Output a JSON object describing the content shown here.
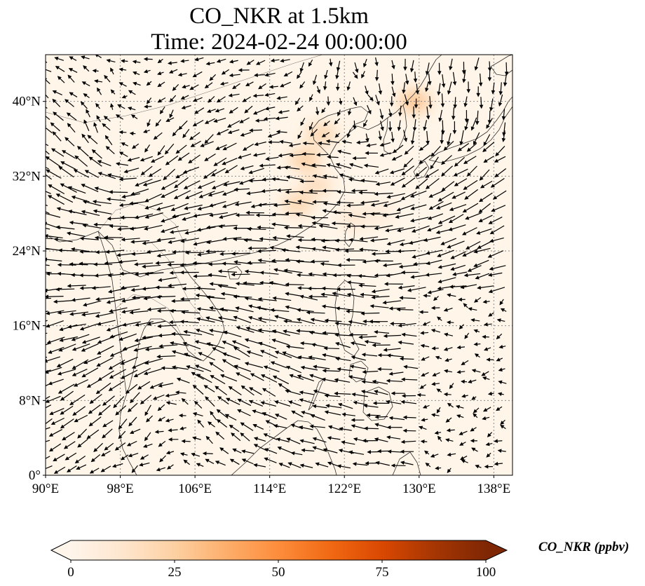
{
  "title": {
    "line1": "CO_NKR at 1.5km",
    "line2": "Time: 2024-02-24 00:00:00"
  },
  "map": {
    "extent": {
      "lon": [
        90,
        140
      ],
      "lat": [
        0,
        45
      ]
    },
    "lon_ticks": [
      {
        "value": 90,
        "label": "90°E"
      },
      {
        "value": 98,
        "label": "98°E"
      },
      {
        "value": 106,
        "label": "106°E"
      },
      {
        "value": 114,
        "label": "114°E"
      },
      {
        "value": 122,
        "label": "122°E"
      },
      {
        "value": 130,
        "label": "130°E"
      },
      {
        "value": 138,
        "label": "138°E"
      }
    ],
    "lat_ticks": [
      {
        "value": 0,
        "label": "0°"
      },
      {
        "value": 8,
        "label": "8°N"
      },
      {
        "value": 16,
        "label": "16°N"
      },
      {
        "value": 24,
        "label": "24°N"
      },
      {
        "value": 32,
        "label": "32°N"
      },
      {
        "value": 40,
        "label": "40°N"
      }
    ],
    "gridlines": "dotted",
    "background_color": "#fff5e8",
    "coastline_color": "#333333",
    "vector_color": "#000000",
    "concentration_hotspots": [
      {
        "lon": 129.5,
        "lat": 40.0,
        "value": 30
      },
      {
        "lon": 117.8,
        "lat": 33.8,
        "value": 26
      },
      {
        "lon": 119.5,
        "lat": 36.5,
        "value": 22
      },
      {
        "lon": 117.0,
        "lat": 29.0,
        "value": 22
      },
      {
        "lon": 119.0,
        "lat": 31.0,
        "value": 18
      },
      {
        "lon": 123.0,
        "lat": 27.5,
        "value": 12
      },
      {
        "lon": 125.5,
        "lat": 28.0,
        "value": 8
      }
    ]
  },
  "colorbar": {
    "label": "CO_NKR (ppbv)",
    "range": [
      0,
      100
    ],
    "extend": "both",
    "ticks": [
      {
        "value": 0,
        "label": "0"
      },
      {
        "value": 25,
        "label": "25"
      },
      {
        "value": 50,
        "label": "50"
      },
      {
        "value": 75,
        "label": "75"
      },
      {
        "value": 100,
        "label": "100"
      }
    ],
    "colormap": [
      "#fff5eb",
      "#fee6ce",
      "#fdd0a2",
      "#fdae6b",
      "#fd8d3c",
      "#f16913",
      "#d94801",
      "#a63603",
      "#7f2704"
    ]
  }
}
